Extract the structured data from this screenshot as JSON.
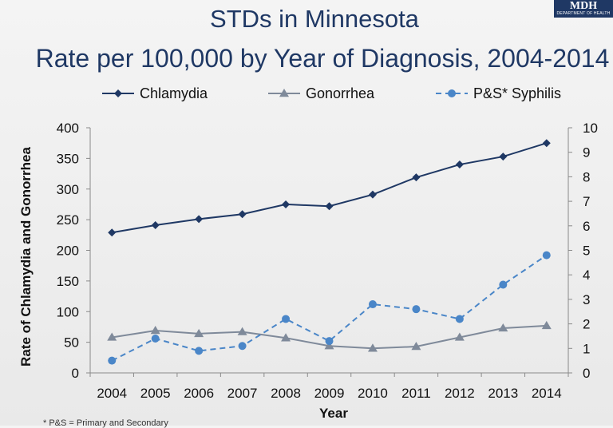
{
  "title": "STDs in Minnesota",
  "subtitle": "Rate per 100,000 by Year of Diagnosis, 2004-2014",
  "logo": {
    "text": "MDH",
    "subtext": "DEPARTMENT OF HEALTH"
  },
  "footnote": "* P&S = Primary and Secondary",
  "colors": {
    "chlamydia": "#1f3864",
    "gonorrhea": "#7f8a9a",
    "syphilis": "#4a86c8"
  },
  "chart_data": {
    "type": "line",
    "x": [
      "2004",
      "2005",
      "2006",
      "2007",
      "2008",
      "2009",
      "2010",
      "2011",
      "2012",
      "2013",
      "2014"
    ],
    "xlabel": "Year",
    "ylabel": "Rate of Chlamydia and Gonorrhea",
    "ylim": [
      0,
      400
    ],
    "yticks": [
      "0",
      "50",
      "100",
      "150",
      "200",
      "250",
      "300",
      "350",
      "400"
    ],
    "y2lim": [
      0,
      10
    ],
    "y2ticks": [
      "0",
      "1",
      "2",
      "3",
      "4",
      "5",
      "6",
      "7",
      "8",
      "9",
      "10"
    ],
    "grid": false,
    "legend_position": "top",
    "series": [
      {
        "name": "Chlamydia",
        "axis": "left",
        "marker": "diamond",
        "dash": "solid",
        "values": [
          229,
          241,
          251,
          259,
          275,
          272,
          291,
          319,
          340,
          353,
          375
        ]
      },
      {
        "name": "Gonorrhea",
        "axis": "left",
        "marker": "triangle",
        "dash": "solid",
        "values": [
          58,
          69,
          64,
          67,
          57,
          44,
          40,
          43,
          58,
          73,
          77
        ]
      },
      {
        "name": "P&S* Syphilis",
        "axis": "right",
        "marker": "circle",
        "dash": "dashed",
        "values": [
          0.5,
          1.4,
          0.9,
          1.1,
          2.2,
          1.3,
          2.8,
          2.6,
          2.2,
          3.6,
          4.8
        ]
      }
    ]
  }
}
